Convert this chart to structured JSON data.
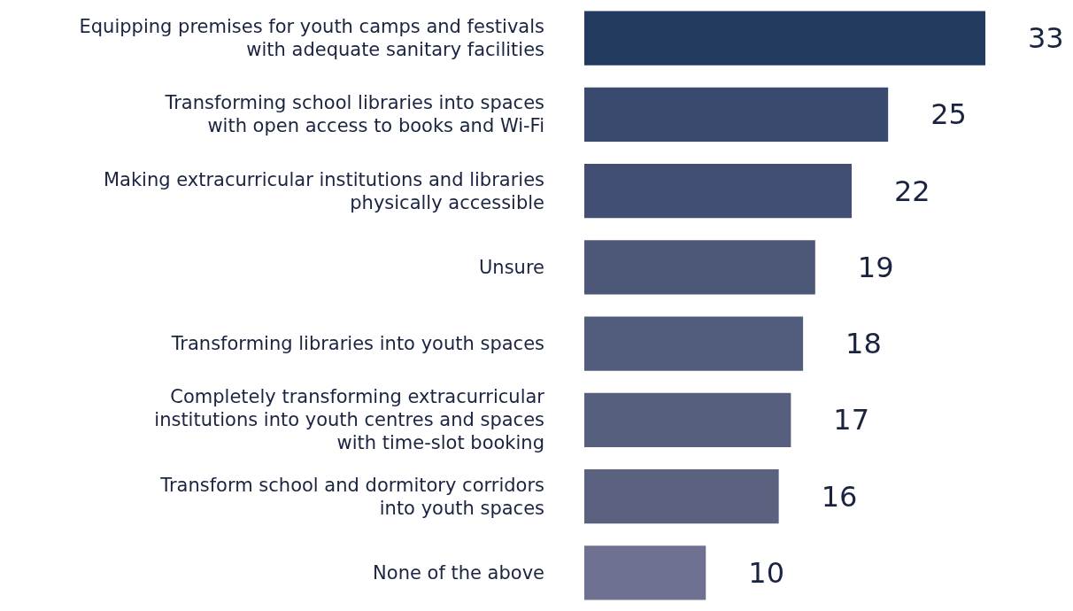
{
  "chart_data": {
    "type": "bar",
    "orientation": "horizontal",
    "data_labels": true,
    "categories": [
      "Equipping premises for youth camps and festivals\nwith adequate sanitary facilities",
      "Transforming school libraries into spaces\nwith open access to books and Wi-Fi",
      "Making extracurricular institutions and libraries\nphysically accessible",
      "Unsure",
      "Transforming libraries into youth spaces",
      "Completely transforming extracurricular\ninstitutions into youth centres and spaces\nwith time-slot booking",
      "Transform school and dormitory corridors\ninto youth spaces",
      "None of the above"
    ],
    "values": [
      33,
      25,
      22,
      19,
      18,
      17,
      16,
      10
    ],
    "colors": [
      "#213a5e",
      "#3a4a6e",
      "#424f72",
      "#4d5878",
      "#525c7c",
      "#575f7e",
      "#5a6280",
      "#6e7290"
    ]
  }
}
